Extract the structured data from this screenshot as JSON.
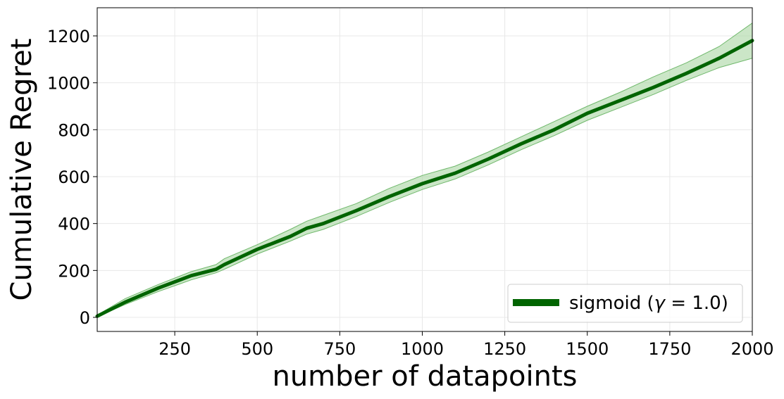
{
  "chart_data": {
    "type": "line",
    "xlabel": "number of datapoints",
    "ylabel": "Cumulative Regret",
    "xlim": [
      15,
      2000
    ],
    "ylim": [
      -60,
      1320
    ],
    "xticks": [
      250,
      500,
      750,
      1000,
      1250,
      1500,
      1750,
      2000
    ],
    "yticks": [
      0,
      200,
      400,
      600,
      800,
      1000,
      1200
    ],
    "grid": true,
    "legend_position": "bottom-right",
    "colors": {
      "line": "#006400",
      "band": "#a8d5a2",
      "band_edge": "#6fb86b"
    },
    "series": [
      {
        "name": "sigmoid (γ = 1.0)",
        "x": [
          15,
          100,
          200,
          300,
          375,
          400,
          500,
          600,
          650,
          700,
          800,
          900,
          1000,
          1100,
          1200,
          1300,
          1400,
          1500,
          1600,
          1700,
          1800,
          1900,
          2000
        ],
        "y": [
          5,
          65,
          125,
          178,
          205,
          225,
          290,
          345,
          380,
          400,
          455,
          515,
          570,
          615,
          675,
          740,
          800,
          870,
          925,
          980,
          1040,
          1105,
          1180
        ],
        "lower": [
          2,
          55,
          110,
          160,
          190,
          205,
          270,
          325,
          355,
          375,
          430,
          490,
          545,
          590,
          650,
          715,
          775,
          840,
          895,
          950,
          1010,
          1065,
          1105
        ],
        "upper": [
          10,
          80,
          140,
          195,
          225,
          250,
          310,
          375,
          410,
          435,
          485,
          550,
          605,
          645,
          705,
          770,
          835,
          900,
          960,
          1025,
          1085,
          1155,
          1255
        ]
      }
    ]
  },
  "legend": {
    "label_main": "sigmoid (",
    "label_gamma": "γ",
    "label_rest": " = 1.0)"
  }
}
